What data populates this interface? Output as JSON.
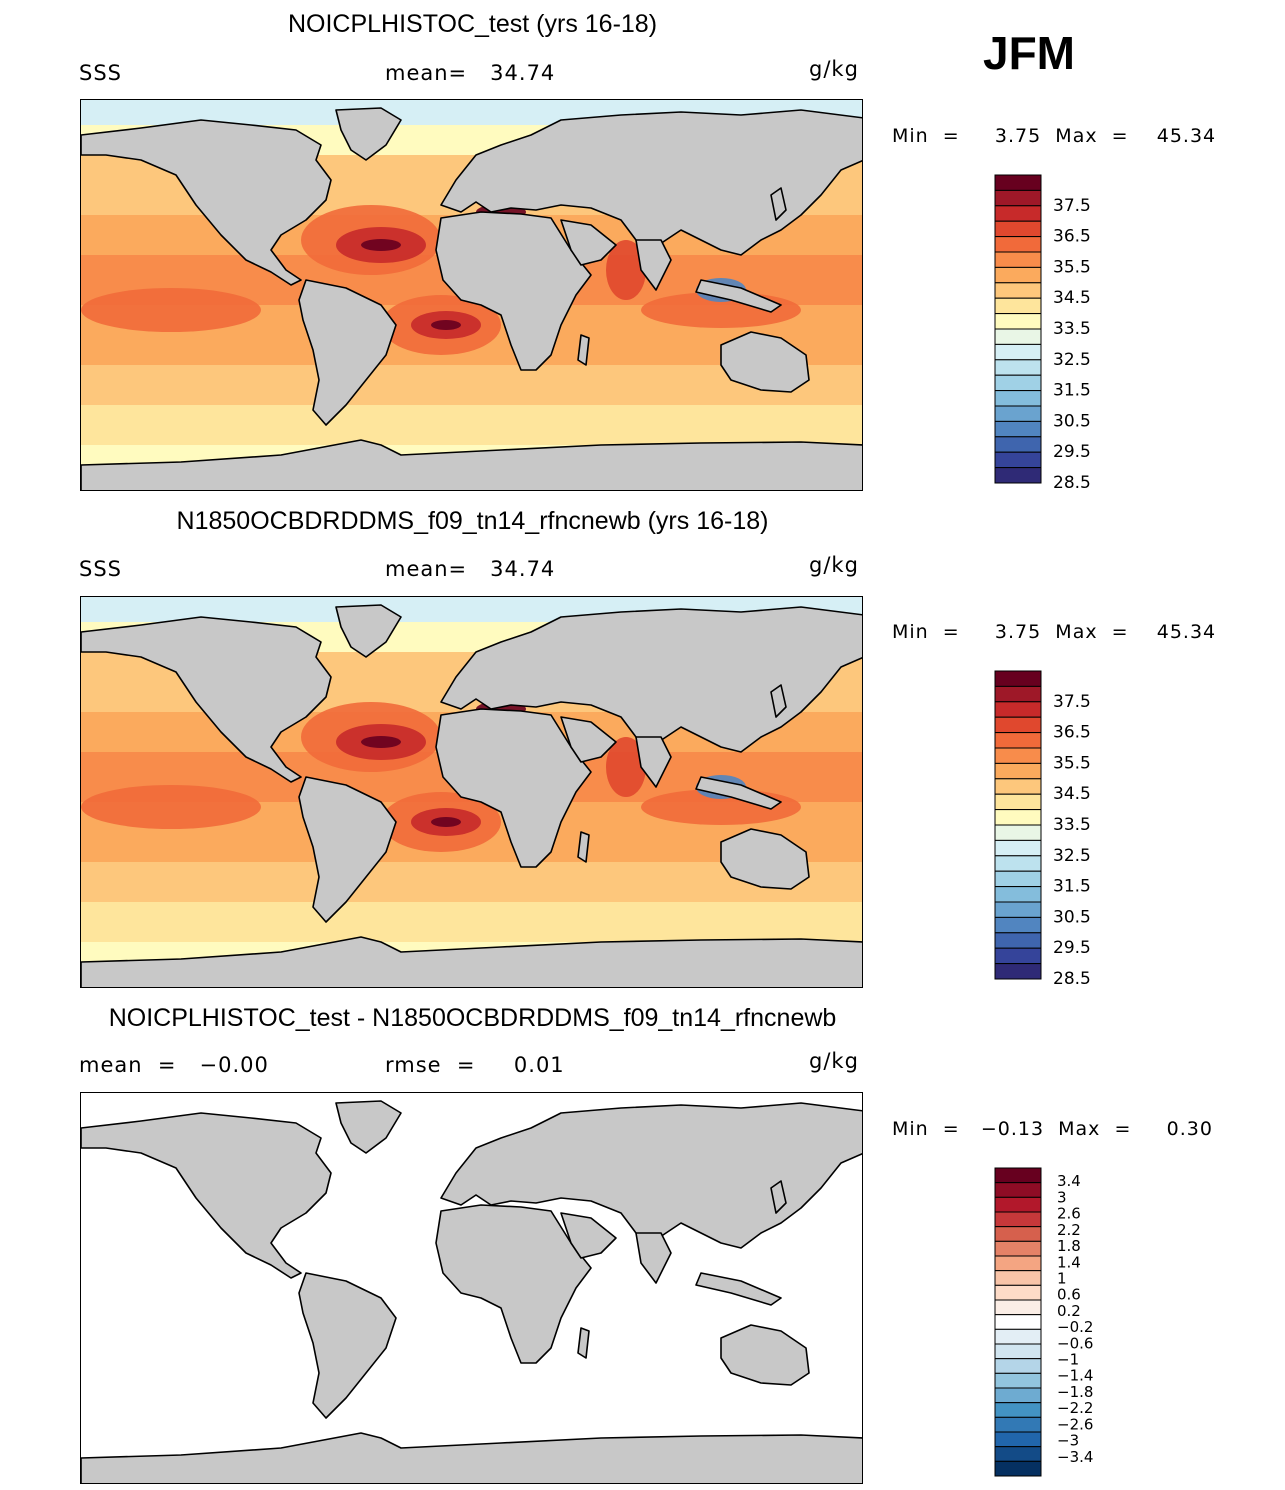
{
  "season": "JFM",
  "panels": [
    {
      "title": "NOICPLHISTOC_test (yrs 16-18)",
      "left_label": "SSS",
      "center_label": "mean=   34.74",
      "units": "g/kg",
      "minmax": "Min  =     3.75  Max  =    45.34",
      "kind": "field"
    },
    {
      "title": "N1850OCBDRDDMS_f09_tn14_rfncnewb (yrs 16-18)",
      "left_label": "SSS",
      "center_label": "mean=   34.74",
      "units": "g/kg",
      "minmax": "Min  =     3.75  Max  =    45.34",
      "kind": "field"
    },
    {
      "title": "NOICPLHISTOC_test - N1850OCBDRDDMS_f09_tn14_rfncnewb",
      "left_label": "mean  =   −0.00",
      "center_label": "rmse  =     0.01",
      "units": "g/kg",
      "minmax": "Min  =   −0.13  Max  =     0.30",
      "kind": "diff"
    }
  ],
  "colorbars": {
    "field": {
      "labels": [
        "37.5",
        "36.5",
        "35.5",
        "34.5",
        "33.5",
        "32.5",
        "31.5",
        "30.5",
        "29.5",
        "28.5"
      ],
      "colors": [
        "#67001f",
        "#9e1828",
        "#c72a2a",
        "#e0482e",
        "#f16a3a",
        "#f88c4b",
        "#fbaa5d",
        "#fdc77c",
        "#fee59c",
        "#fffbbf",
        "#e9f6e6",
        "#d6eff5",
        "#bde2ee",
        "#a0d1e6",
        "#84bddc",
        "#6aa3cf",
        "#5185c0",
        "#3f65ae",
        "#35449a",
        "#2f2a76"
      ]
    },
    "diff": {
      "labels": [
        "3.4",
        "3",
        "2.6",
        "2.2",
        "1.8",
        "1.4",
        "1",
        "0.6",
        "0.2",
        "−0.2",
        "−0.6",
        "−1",
        "−1.4",
        "−1.8",
        "−2.2",
        "−2.6",
        "−3",
        "−3.4"
      ],
      "colors": [
        "#67001f",
        "#8e0c25",
        "#b2182b",
        "#c6383a",
        "#d6604d",
        "#e58267",
        "#f4a582",
        "#f8c4a8",
        "#fddbc7",
        "#fbeee6",
        "#ffffff",
        "#e3eef5",
        "#d1e5f0",
        "#b4d5e8",
        "#92c5de",
        "#6eabd1",
        "#4393c3",
        "#3279b5",
        "#2166ac",
        "#134b87",
        "#053061"
      ]
    }
  },
  "colors": {
    "land": "#c8c8c8",
    "coast": "#000000",
    "diff_ocean": "#ffffff"
  }
}
